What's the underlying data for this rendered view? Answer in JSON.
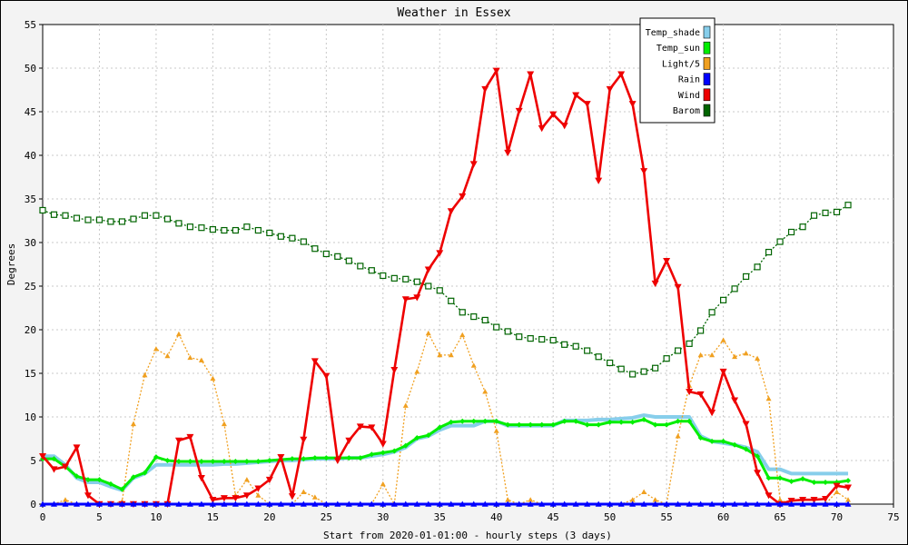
{
  "chart_data": {
    "type": "line",
    "title": "Weather in Essex",
    "xlabel": "Start from 2020-01-01:00 - hourly steps (3 days)",
    "ylabel": "Degrees",
    "xlim": [
      0,
      75
    ],
    "ylim": [
      0,
      55
    ],
    "x_ticks": [
      0,
      5,
      10,
      15,
      20,
      25,
      30,
      35,
      40,
      45,
      50,
      55,
      60,
      65,
      70,
      75
    ],
    "y_ticks": [
      0,
      5,
      10,
      15,
      20,
      25,
      30,
      35,
      40,
      45,
      50,
      55
    ],
    "grid": true,
    "legend_position": "top-right",
    "x": [
      0,
      1,
      2,
      3,
      4,
      5,
      6,
      7,
      8,
      9,
      10,
      11,
      12,
      13,
      14,
      15,
      16,
      17,
      18,
      19,
      20,
      21,
      22,
      23,
      24,
      25,
      26,
      27,
      28,
      29,
      30,
      31,
      32,
      33,
      34,
      35,
      36,
      37,
      38,
      39,
      40,
      41,
      42,
      43,
      44,
      45,
      46,
      47,
      48,
      49,
      50,
      51,
      52,
      53,
      54,
      55,
      56,
      57,
      58,
      59,
      60,
      61,
      62,
      63,
      64,
      65,
      66,
      67,
      68,
      69,
      70,
      71
    ],
    "series": [
      {
        "name": "Temp_shade",
        "color": "#87ceeb",
        "marker": "line",
        "values": [
          5.5,
          5.5,
          4.5,
          3,
          2.5,
          2.5,
          2,
          1.6,
          3,
          3.5,
          4.5,
          4.5,
          4.5,
          4.5,
          4.5,
          4.5,
          4.6,
          4.6,
          4.7,
          4.8,
          4.9,
          5,
          5,
          5.1,
          5.2,
          5.2,
          5.2,
          5.3,
          5.3,
          5.5,
          5.7,
          6,
          6.5,
          7.5,
          7.8,
          8.5,
          9,
          9,
          9,
          9.5,
          9.5,
          9,
          9,
          9,
          9,
          9,
          9.6,
          9.6,
          9.6,
          9.7,
          9.7,
          9.8,
          9.9,
          10.2,
          10,
          10,
          10,
          10,
          7.8,
          7.2,
          7,
          6.8,
          6.5,
          6,
          4,
          4,
          3.5,
          3.5,
          3.5,
          3.5,
          3.5,
          3.5
        ]
      },
      {
        "name": "Temp_sun",
        "color": "#00ee00",
        "marker": "diamond",
        "values": [
          5.2,
          5.2,
          4.3,
          3.2,
          2.8,
          2.8,
          2.3,
          1.7,
          3.1,
          3.6,
          5.4,
          5,
          4.9,
          4.9,
          4.9,
          4.9,
          4.9,
          4.9,
          4.9,
          4.9,
          5,
          5.1,
          5.2,
          5.2,
          5.3,
          5.3,
          5.3,
          5.3,
          5.3,
          5.7,
          5.9,
          6.1,
          6.7,
          7.6,
          7.9,
          8.8,
          9.4,
          9.5,
          9.5,
          9.5,
          9.5,
          9.1,
          9.1,
          9.1,
          9.1,
          9.1,
          9.5,
          9.5,
          9.1,
          9.1,
          9.4,
          9.4,
          9.4,
          9.7,
          9.1,
          9.1,
          9.5,
          9.5,
          7.6,
          7.2,
          7.2,
          6.8,
          6.3,
          5.5,
          3,
          3,
          2.6,
          2.9,
          2.5,
          2.5,
          2.5,
          2.7
        ]
      },
      {
        "name": "Light/5",
        "color": "#f0a020",
        "marker": "triangle-up",
        "values": [
          0,
          0,
          0.5,
          0,
          0,
          0,
          0,
          0.3,
          9.2,
          14.8,
          17.8,
          17,
          19.5,
          16.8,
          16.5,
          14.4,
          9.2,
          1,
          2.8,
          1,
          0,
          0,
          0,
          1.4,
          0.8,
          0,
          0,
          0,
          0,
          0,
          2.3,
          0,
          11.3,
          15.2,
          19.6,
          17.1,
          17.1,
          19.4,
          15.9,
          12.9,
          8.4,
          0.5,
          0,
          0.5,
          0,
          0,
          0,
          0,
          0,
          0,
          0,
          0,
          0.5,
          1.4,
          0.5,
          0,
          7.8,
          13.6,
          17.1,
          17.1,
          18.8,
          16.9,
          17.3,
          16.7,
          12.1,
          0.5,
          0,
          0,
          0,
          0,
          1.4,
          0.5
        ]
      },
      {
        "name": "Rain",
        "color": "#0000ff",
        "marker": "triangle-up",
        "values": [
          0,
          0,
          0,
          0,
          0,
          0,
          0,
          0,
          0,
          0,
          0,
          0,
          0,
          0,
          0,
          0,
          0,
          0,
          0,
          0,
          0,
          0,
          0,
          0,
          0,
          0,
          0,
          0,
          0,
          0,
          0,
          0,
          0,
          0,
          0,
          0,
          0,
          0,
          0,
          0,
          0,
          0,
          0,
          0,
          0,
          0,
          0,
          0,
          0,
          0,
          0,
          0,
          0,
          0,
          0,
          0,
          0,
          0,
          0,
          0,
          0,
          0,
          0,
          0,
          0,
          0,
          0,
          0,
          0,
          0,
          0,
          0
        ]
      },
      {
        "name": "Wind",
        "color": "#ee0000",
        "marker": "triangle-down",
        "values": [
          5.5,
          4,
          4.3,
          6.5,
          1,
          0,
          0,
          0,
          0,
          0,
          0,
          0,
          7.3,
          7.7,
          3,
          0.5,
          0.7,
          0.7,
          1,
          1.8,
          2.8,
          5.4,
          0.9,
          7.4,
          16.4,
          14.7,
          5,
          7.3,
          8.9,
          8.8,
          6.9,
          15.4,
          23.5,
          23.7,
          26.9,
          28.8,
          33.6,
          35.3,
          39,
          47.6,
          49.7,
          40.3,
          45.1,
          49.3,
          43.1,
          44.7,
          43.4,
          46.9,
          45.9,
          37.1,
          47.6,
          49.3,
          45.9,
          38.2,
          25.3,
          27.9,
          24.9,
          12.9,
          12.6,
          10.5,
          15.2,
          11.9,
          9.2,
          3.6,
          1,
          0,
          0.4,
          0.5,
          0.5,
          0.6,
          2.1,
          1.9
        ]
      },
      {
        "name": "Barom",
        "color": "#006400",
        "marker": "square",
        "values": [
          33.7,
          33.2,
          33.1,
          32.8,
          32.6,
          32.6,
          32.4,
          32.4,
          32.7,
          33.1,
          33.1,
          32.7,
          32.2,
          31.8,
          31.7,
          31.5,
          31.4,
          31.4,
          31.8,
          31.4,
          31.1,
          30.7,
          30.5,
          30.1,
          29.3,
          28.7,
          28.4,
          27.9,
          27.3,
          26.8,
          26.2,
          25.9,
          25.8,
          25.5,
          25,
          24.5,
          23.3,
          22,
          21.5,
          21.1,
          20.3,
          19.8,
          19.2,
          19,
          18.9,
          18.8,
          18.3,
          18.1,
          17.6,
          16.9,
          16.2,
          15.5,
          14.9,
          15.2,
          15.6,
          16.7,
          17.6,
          18.4,
          19.9,
          22,
          23.4,
          24.7,
          26.1,
          27.2,
          28.9,
          30.1,
          31.2,
          31.8,
          33.1,
          33.4,
          33.5,
          34.3
        ]
      }
    ]
  }
}
